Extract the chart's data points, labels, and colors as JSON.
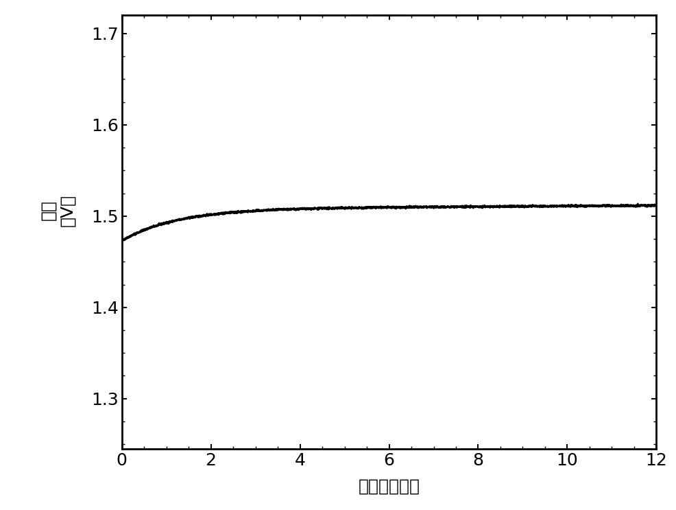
{
  "x_start": 0,
  "x_end": 12,
  "y_start": 1.473,
  "y_end": 1.512,
  "xlim": [
    0,
    12
  ],
  "ylim": [
    1.245,
    1.72
  ],
  "xticks": [
    0,
    2,
    4,
    6,
    8,
    10,
    12
  ],
  "yticks": [
    1.3,
    1.4,
    1.5,
    1.6,
    1.7
  ],
  "xlabel": "时间（小时）",
  "ylabel_line1": "电位",
  "ylabel_line2": "（V）",
  "line_color": "#000000",
  "line_width": 2.0,
  "background_color": "#ffffff",
  "tick_fontsize": 18,
  "label_fontsize": 18,
  "k": 0.8,
  "y_asymptote": 1.508,
  "linear_slope": 0.0003,
  "noise_std": 0.0005
}
